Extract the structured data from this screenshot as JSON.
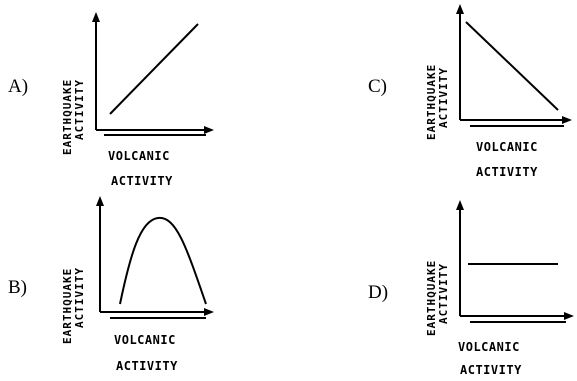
{
  "y_axis_label_line1": "EARTHQUAKE",
  "y_axis_label_line2": "ACTIVITY",
  "x_axis_label_line1": "VOLCANIC",
  "x_axis_label_line2": "ACTIVITY",
  "options": [
    {
      "letter": "A)",
      "curve": "increasing"
    },
    {
      "letter": "B)",
      "curve": "rise-then-fall"
    },
    {
      "letter": "C)",
      "curve": "decreasing"
    },
    {
      "letter": "D)",
      "curve": "constant"
    }
  ]
}
